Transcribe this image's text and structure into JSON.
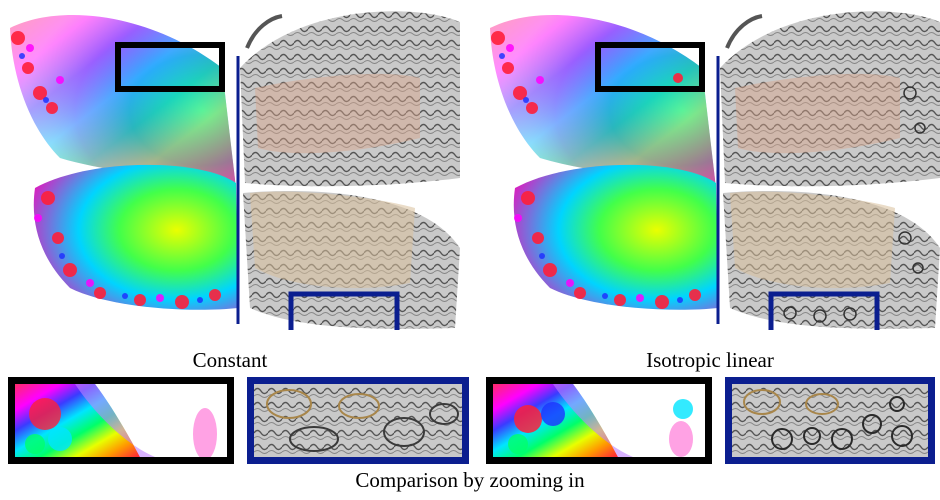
{
  "panels": [
    {
      "caption": "Constant"
    },
    {
      "caption": "Isotropic linear"
    }
  ],
  "footer": "Comparison by zooming in",
  "colors": {
    "inset_black": "#000000",
    "inset_blue": "#0b1e8f",
    "divider": "#0b1e8f",
    "tan": "#d8c09a",
    "salmon": "#d9a48a",
    "gray": "#b4b4b4"
  }
}
